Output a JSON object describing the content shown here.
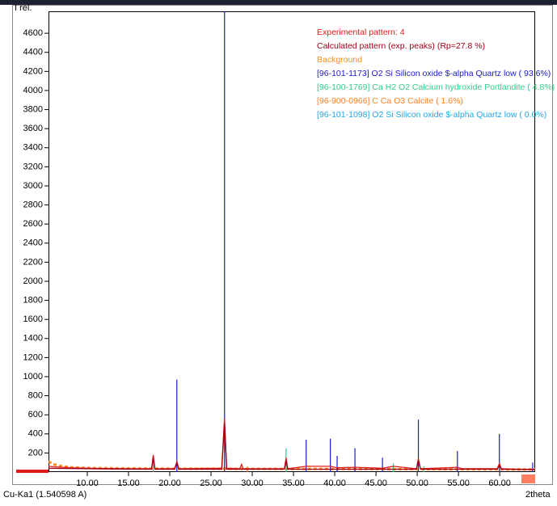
{
  "chart_data": {
    "type": "xrd",
    "y_label": "I rel.",
    "x_label": "2theta",
    "footer": "Cu-Ka1 (1.540598 A)",
    "xlim": [
      5.3,
      64.3
    ],
    "ylim": [
      0,
      4830
    ],
    "xticks": [
      {
        "value": 10,
        "label": "10.00"
      },
      {
        "value": 15,
        "label": "15.00"
      },
      {
        "value": 20,
        "label": "20.00"
      },
      {
        "value": 25,
        "label": "25.00"
      },
      {
        "value": 30,
        "label": "30.00"
      },
      {
        "value": 35,
        "label": "35.00"
      },
      {
        "value": 40,
        "label": "40.00"
      },
      {
        "value": 45,
        "label": "45.00"
      },
      {
        "value": 50,
        "label": "50.00"
      },
      {
        "value": 55,
        "label": "55.00"
      },
      {
        "value": 60,
        "label": "60.00"
      }
    ],
    "yticks": [
      200,
      400,
      600,
      800,
      1000,
      1200,
      1400,
      1600,
      1800,
      2000,
      2200,
      2400,
      2600,
      2800,
      3000,
      3200,
      3400,
      3600,
      3800,
      4000,
      4200,
      4400,
      4600
    ],
    "series": [
      {
        "name": "Experimental pattern: 4",
        "color": "#e01b1b",
        "style": "line",
        "x": [
          5.3,
          6,
          7,
          8,
          10,
          12,
          15,
          17.8,
          18.0,
          18.2,
          20.6,
          20.86,
          21.1,
          26.3,
          26.64,
          26.9,
          28.5,
          28.7,
          28.9,
          33.9,
          34.1,
          34.3,
          36.54,
          39.47,
          40.3,
          42.45,
          45.8,
          47.1,
          49.9,
          50.14,
          50.4,
          54.87,
          55.5,
          59.7,
          59.96,
          60.2,
          62,
          64.3
        ],
        "values": [
          60,
          55,
          50,
          45,
          40,
          38,
          35,
          35,
          180,
          35,
          35,
          110,
          35,
          40,
          560,
          40,
          35,
          80,
          35,
          35,
          150,
          35,
          60,
          60,
          45,
          50,
          40,
          60,
          35,
          140,
          35,
          50,
          35,
          35,
          90,
          35,
          30,
          30
        ]
      },
      {
        "name": "Calculated pattern (exp. peaks) (Rp=27.8 %)",
        "color": "#a0001a",
        "style": "line",
        "x": [
          5.3,
          10,
          17.8,
          18.0,
          18.2,
          20.6,
          20.86,
          21.1,
          26.3,
          26.64,
          26.9,
          33.9,
          34.1,
          34.3,
          49.9,
          50.14,
          50.4,
          59.7,
          59.96,
          60.2,
          64.3
        ],
        "values": [
          40,
          35,
          30,
          150,
          30,
          30,
          100,
          30,
          30,
          520,
          30,
          30,
          120,
          30,
          30,
          120,
          30,
          30,
          70,
          30,
          25
        ]
      },
      {
        "name": "Background",
        "color": "#ff8c1a",
        "style": "dots",
        "x": [
          5.3,
          6,
          7,
          8,
          10,
          15,
          20,
          25,
          30,
          35,
          40,
          45,
          50,
          55,
          60,
          64.3
        ],
        "values": [
          110,
          80,
          60,
          50,
          42,
          38,
          36,
          35,
          34,
          33,
          32,
          31,
          30,
          29,
          28,
          28
        ]
      },
      {
        "name": "[96-101-1173] O2 Si Silicon oxide $-alpha Quartz low ( 93.6%)",
        "color": "#1a1acc",
        "style": "stick",
        "x": [
          20.86,
          26.64,
          36.54,
          39.47,
          40.29,
          42.45,
          45.79,
          50.14,
          54.87,
          59.96,
          64.0
        ],
        "values": [
          970,
          4830,
          340,
          350,
          170,
          250,
          150,
          550,
          220,
          400,
          100
        ]
      },
      {
        "name": "[96-100-1769] Ca H2 O2 Calcium hydroxide Portlandite ( 4.8%)",
        "color": "#2ecf8a",
        "style": "stick",
        "x": [
          18.0,
          34.1,
          47.1,
          50.8
        ],
        "values": [
          120,
          250,
          90,
          60
        ]
      },
      {
        "name": "[96-900-0966] C Ca O3  Calcite ( 1.6%)",
        "color": "#ff7f20",
        "style": "stick",
        "x": [
          29.4
        ],
        "values": [
          60
        ]
      },
      {
        "name": "[96-101-1098] O2 Si Silicon oxide $-alpha Quartz low (  0.0%)",
        "color": "#20a8e8",
        "style": "stick",
        "x": [
          26.64
        ],
        "values": [
          0
        ]
      }
    ]
  }
}
